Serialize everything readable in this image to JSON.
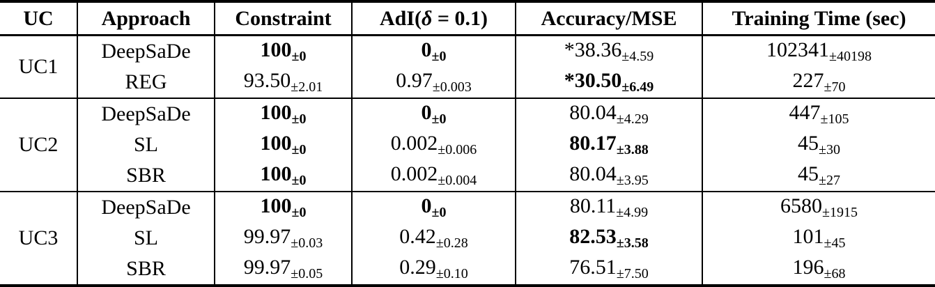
{
  "colors": {
    "background": "#ffffff",
    "text": "#000000",
    "rules": "#000000"
  },
  "table": {
    "header": {
      "uc": "UC",
      "approach": "Approach",
      "constraint": "Constraint",
      "adi_pre": "AdI(",
      "adi_delta": "δ",
      "adi_post": " = 0.1)",
      "accuracy": "Accuracy/MSE",
      "training_time": "Training Time (sec)"
    },
    "groups": [
      {
        "uc": "UC1",
        "rows": [
          {
            "approach": "DeepSaDe",
            "constraint": {
              "value": "100",
              "sub": "±0",
              "bold": true
            },
            "adi": {
              "value": "0",
              "sub": "±0",
              "bold": true
            },
            "accuracy": {
              "value": "*38.36",
              "sub": "±4.59",
              "bold": false
            },
            "time": {
              "value": "102341",
              "sub": "±40198",
              "bold": false
            }
          },
          {
            "approach": "REG",
            "constraint": {
              "value": "93.50",
              "sub": "±2.01",
              "bold": false
            },
            "adi": {
              "value": "0.97",
              "sub": "±0.003",
              "bold": false
            },
            "accuracy": {
              "value": "*30.50",
              "sub": "±6.49",
              "bold": true
            },
            "time": {
              "value": "227",
              "sub": "±70",
              "bold": false
            }
          }
        ]
      },
      {
        "uc": "UC2",
        "rows": [
          {
            "approach": "DeepSaDe",
            "constraint": {
              "value": "100",
              "sub": "±0",
              "bold": true
            },
            "adi": {
              "value": "0",
              "sub": "±0",
              "bold": true
            },
            "accuracy": {
              "value": "80.04",
              "sub": "±4.29",
              "bold": false
            },
            "time": {
              "value": "447",
              "sub": "±105",
              "bold": false
            }
          },
          {
            "approach": "SL",
            "constraint": {
              "value": "100",
              "sub": "±0",
              "bold": true
            },
            "adi": {
              "value": "0.002",
              "sub": "±0.006",
              "bold": false
            },
            "accuracy": {
              "value": "80.17",
              "sub": "±3.88",
              "bold": true
            },
            "time": {
              "value": "45",
              "sub": "±30",
              "bold": false
            }
          },
          {
            "approach": "SBR",
            "constraint": {
              "value": "100",
              "sub": "±0",
              "bold": true
            },
            "adi": {
              "value": "0.002",
              "sub": "±0.004",
              "bold": false
            },
            "accuracy": {
              "value": "80.04",
              "sub": "±3.95",
              "bold": false
            },
            "time": {
              "value": "45",
              "sub": "±27",
              "bold": false
            }
          }
        ]
      },
      {
        "uc": "UC3",
        "rows": [
          {
            "approach": "DeepSaDe",
            "constraint": {
              "value": "100",
              "sub": "±0",
              "bold": true
            },
            "adi": {
              "value": "0",
              "sub": "±0",
              "bold": true
            },
            "accuracy": {
              "value": "80.11",
              "sub": "±4.99",
              "bold": false
            },
            "time": {
              "value": "6580",
              "sub": "±1915",
              "bold": false
            }
          },
          {
            "approach": "SL",
            "constraint": {
              "value": "99.97",
              "sub": "±0.03",
              "bold": false
            },
            "adi": {
              "value": "0.42",
              "sub": "±0.28",
              "bold": false
            },
            "accuracy": {
              "value": "82.53",
              "sub": "±3.58",
              "bold": true
            },
            "time": {
              "value": "101",
              "sub": "±45",
              "bold": false
            }
          },
          {
            "approach": "SBR",
            "constraint": {
              "value": "99.97",
              "sub": "±0.05",
              "bold": false
            },
            "adi": {
              "value": "0.29",
              "sub": "±0.10",
              "bold": false
            },
            "accuracy": {
              "value": "76.51",
              "sub": "±7.50",
              "bold": false
            },
            "time": {
              "value": "196",
              "sub": "±68",
              "bold": false
            }
          }
        ]
      }
    ]
  }
}
